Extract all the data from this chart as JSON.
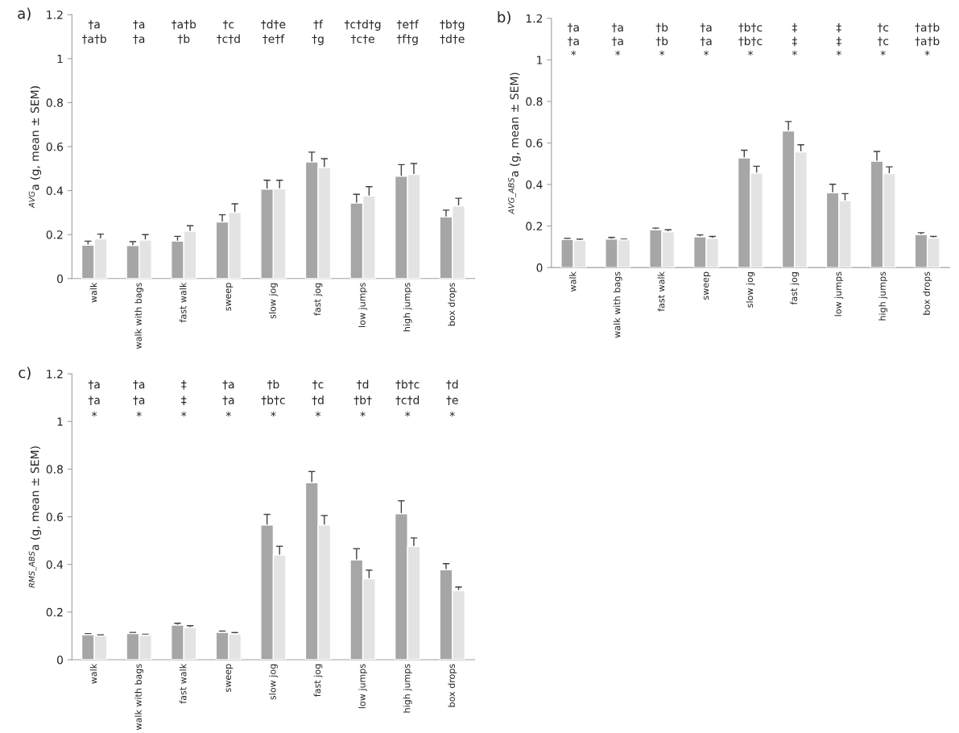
{
  "chart_data": [
    {
      "type": "bar",
      "title": "a)",
      "ylabel": "$^{AVG}$a (g, mean ± SEM)",
      "categories": [
        "walk",
        "walk with bags",
        "fast walk",
        "sweep",
        "slow jog",
        "fast jog",
        "low jumps",
        "high jumps",
        "box drops"
      ],
      "series": [
        {
          "color": "#a6a6a6",
          "values": [
            0.152,
            0.15,
            0.17,
            0.257,
            0.407,
            0.53,
            0.343,
            0.465,
            0.28
          ],
          "errors": [
            0.018,
            0.018,
            0.022,
            0.033,
            0.04,
            0.045,
            0.04,
            0.053,
            0.031
          ]
        },
        {
          "color": "#e3e3e3",
          "values": [
            0.18,
            0.175,
            0.215,
            0.3,
            0.408,
            0.505,
            0.375,
            0.473,
            0.33
          ],
          "errors": [
            0.022,
            0.025,
            0.025,
            0.04,
            0.039,
            0.04,
            0.043,
            0.05,
            0.035
          ]
        }
      ],
      "ylim": [
        0,
        1.2
      ],
      "yticks": [
        0,
        0.2,
        0.4,
        0.6,
        0.8,
        1,
        1.2
      ],
      "grid": false,
      "legend": false,
      "annotations": [
        "†a",
        "†a",
        "†a†b",
        "†c",
        "†d†e",
        "†f",
        "†c†d†g",
        "†e†f",
        "†b†g",
        "†a†b",
        "†a",
        "†b",
        "†c†d",
        "†e†f",
        "†g",
        "†c†e",
        "†f†g",
        "†d†e"
      ]
    },
    {
      "type": "bar",
      "title": "b)",
      "ylabel": "$^{AVG_ABS}$a (g, mean ± SEM)",
      "categories": [
        "walk",
        "walk with bags",
        "fast walk",
        "sweep",
        "slow jog",
        "fast jog",
        "low jumps",
        "high jumps",
        "box drops"
      ],
      "series": [
        {
          "color": "#a6a6a6",
          "values": [
            0.135,
            0.137,
            0.182,
            0.148,
            0.528,
            0.658,
            0.36,
            0.512,
            0.158
          ],
          "errors": [
            0.005,
            0.008,
            0.008,
            0.009,
            0.037,
            0.045,
            0.041,
            0.047,
            0.01
          ]
        },
        {
          "color": "#e3e3e3",
          "values": [
            0.13,
            0.133,
            0.172,
            0.14,
            0.455,
            0.557,
            0.321,
            0.452,
            0.142
          ],
          "errors": [
            0.007,
            0.004,
            0.01,
            0.01,
            0.033,
            0.034,
            0.035,
            0.033,
            0.008
          ]
        }
      ],
      "ylim": [
        0,
        1.2
      ],
      "yticks": [
        0,
        0.2,
        0.4,
        0.6,
        0.8,
        1,
        1.2
      ],
      "grid": false,
      "legend": false,
      "annotations": [
        "†a",
        "†a",
        "†b",
        "†a",
        "†b†c",
        "‡",
        "‡",
        "†c",
        "†a†b",
        "†a",
        "†a",
        "†b",
        "†a",
        "†b†c",
        "‡",
        "‡",
        "†c",
        "†a†b",
        "*",
        "*",
        "*",
        "*",
        "*",
        "*",
        "*",
        "*",
        "*"
      ]
    },
    {
      "type": "bar",
      "title": "c)",
      "ylabel": "$^{RMS_ABS}$a (g, mean ± SEM)",
      "categories": [
        "walk",
        "walk with bags",
        "fast walk",
        "sweep",
        "slow jog",
        "fast jog",
        "low jumps",
        "high jumps",
        "box drops"
      ],
      "series": [
        {
          "color": "#a6a6a6",
          "values": [
            0.105,
            0.11,
            0.145,
            0.115,
            0.565,
            0.743,
            0.419,
            0.613,
            0.378
          ],
          "errors": [
            0.004,
            0.004,
            0.008,
            0.005,
            0.045,
            0.047,
            0.047,
            0.054,
            0.025
          ]
        },
        {
          "color": "#e3e3e3",
          "values": [
            0.1,
            0.103,
            0.135,
            0.108,
            0.439,
            0.565,
            0.34,
            0.475,
            0.29
          ],
          "errors": [
            0.004,
            0.004,
            0.008,
            0.006,
            0.037,
            0.04,
            0.036,
            0.036,
            0.015
          ]
        }
      ],
      "ylim": [
        0,
        1.2
      ],
      "yticks": [
        0,
        0.2,
        0.4,
        0.6,
        0.8,
        1,
        1.2
      ],
      "grid": false,
      "legend": false,
      "annotations": [
        "†a",
        "†a",
        "‡",
        "†a",
        "†b",
        "†c",
        "†d",
        "†b†c",
        "†d",
        "†a",
        "†a",
        "‡",
        "†a",
        "†b†c",
        "†d",
        "†b†",
        "†c†d",
        "†e",
        "*",
        "*",
        "*",
        "*",
        "*",
        "*",
        "*",
        "*",
        "*"
      ]
    }
  ]
}
